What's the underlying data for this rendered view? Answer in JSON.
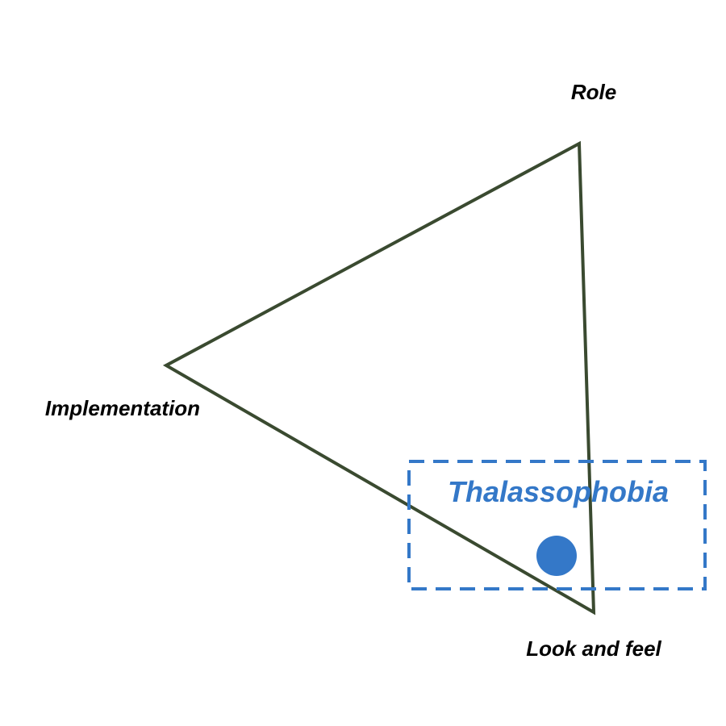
{
  "diagram": {
    "vertices": {
      "top": "Role",
      "left": "Implementation",
      "bottom": "Look and feel"
    },
    "focus": {
      "label": "Thalassophobia",
      "color": "#3478c8"
    },
    "line_color": "#3a4a30"
  }
}
